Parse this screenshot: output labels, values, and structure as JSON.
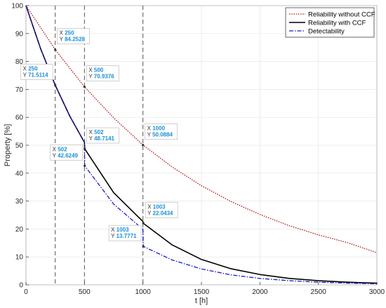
{
  "chart_data": {
    "type": "line",
    "title": "",
    "xlabel": "t [h]",
    "ylabel": "Property [%]",
    "xlim": [
      0,
      3000
    ],
    "ylim": [
      0,
      100
    ],
    "xticks": [
      0,
      500,
      1000,
      1500,
      2000,
      2500,
      3000
    ],
    "yticks": [
      0,
      10,
      20,
      30,
      40,
      50,
      60,
      70,
      80,
      90,
      100
    ],
    "grid": true,
    "legend_position": "top-right",
    "series": [
      {
        "name": "Reliability without CCF",
        "color": "#b22222",
        "style": "dotted",
        "x": [
          0,
          250,
          500,
          750,
          1000,
          1250,
          1500,
          1750,
          2000,
          2250,
          2500,
          2750,
          3000
        ],
        "y": [
          100,
          84.2528,
          70.9376,
          59.78,
          50.0884,
          42.2,
          35.5,
          29.9,
          25.2,
          21.2,
          17.9,
          15.1,
          11.5
        ]
      },
      {
        "name": "Reliability with CCF",
        "color": "#000000",
        "style": "solid",
        "x": [
          0,
          125,
          250,
          375,
          500,
          502,
          750,
          1000,
          1003,
          1250,
          1500,
          1750,
          2000,
          2250,
          2500,
          2750,
          3000
        ],
        "y": [
          100,
          84.6,
          71.5114,
          60.4,
          51.0,
          48.7141,
          33.0,
          22.7,
          22.0434,
          14.3,
          9.1,
          5.8,
          3.7,
          2.3,
          1.5,
          0.95,
          0.6
        ]
      },
      {
        "name": "Detectability",
        "color": "#1a1acc",
        "style": "dashdot",
        "x": [
          0,
          125,
          250,
          375,
          500,
          502,
          750,
          1000,
          1003,
          1250,
          1500,
          1750,
          2000,
          2250,
          2500,
          2750,
          3000
        ],
        "y": [
          100,
          84.6,
          71.5114,
          60.4,
          51.0,
          42.6249,
          28.9,
          19.9,
          13.7771,
          8.9,
          5.7,
          3.6,
          2.3,
          1.5,
          0.95,
          0.6,
          0.4
        ]
      }
    ],
    "vlines": [
      250,
      500,
      1000
    ],
    "datatips": [
      {
        "x_text": "250",
        "y_text": "84.2528",
        "x": 250,
        "y": 84.2528,
        "side": "right"
      },
      {
        "x_text": "250",
        "y_text": "71.5114",
        "x": 250,
        "y": 71.5114,
        "side": "left"
      },
      {
        "x_text": "500",
        "y_text": "70.9376",
        "x": 500,
        "y": 70.9376,
        "side": "right"
      },
      {
        "x_text": "502",
        "y_text": "48.7141",
        "x": 502,
        "y": 48.7141,
        "side": "right"
      },
      {
        "x_text": "502",
        "y_text": "42.6249",
        "x": 502,
        "y": 42.6249,
        "side": "left"
      },
      {
        "x_text": "1000",
        "y_text": "50.0884",
        "x": 1000,
        "y": 50.0884,
        "side": "right"
      },
      {
        "x_text": "1003",
        "y_text": "22.0434",
        "x": 1003,
        "y": 22.0434,
        "side": "right"
      },
      {
        "x_text": "1003",
        "y_text": "13.7771",
        "x": 1003,
        "y": 13.7771,
        "side": "left"
      }
    ]
  }
}
